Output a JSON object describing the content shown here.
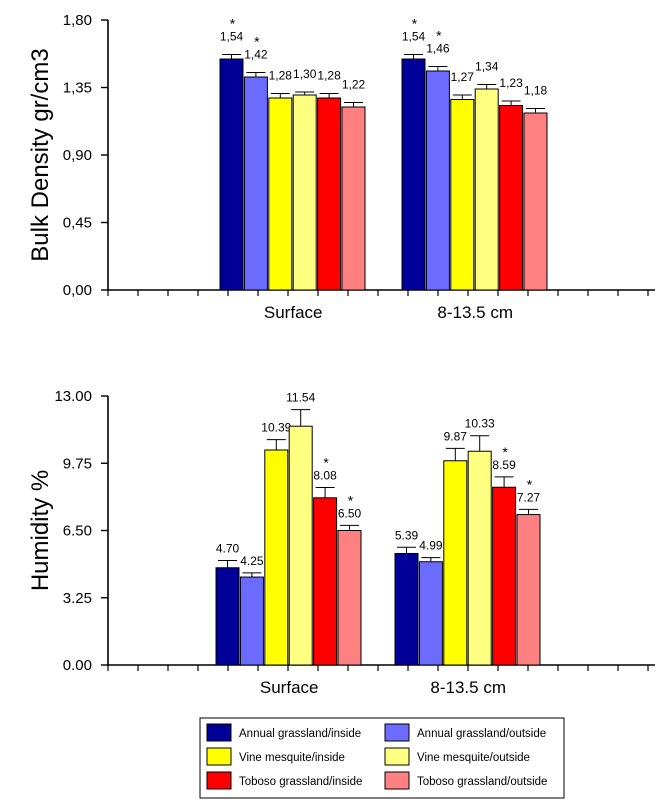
{
  "chart_data": [
    {
      "type": "bar",
      "ylabel": "Bulk Density gr/cm3",
      "yticks": [
        "0,00",
        "0,45",
        "0,90",
        "1,35",
        "1,80"
      ],
      "ylim": [
        0,
        1.8
      ],
      "categories": [
        "Surface",
        "8-13.5 cm"
      ],
      "series": [
        {
          "name": "Annual grassland/inside",
          "color": "#000099",
          "values": [
            1.54,
            1.54
          ],
          "errors": [
            0.03,
            0.03
          ],
          "labels": [
            "1,54",
            "1,54"
          ],
          "significant": [
            true,
            true
          ]
        },
        {
          "name": "Annual grassland/outside",
          "color": "#6b6bff",
          "values": [
            1.42,
            1.46
          ],
          "errors": [
            0.03,
            0.03
          ],
          "labels": [
            "1,42",
            "1,46"
          ],
          "significant": [
            true,
            true
          ]
        },
        {
          "name": "Vine mesquite/inside",
          "color": "#ffff00",
          "values": [
            1.28,
            1.27
          ],
          "errors": [
            0.03,
            0.03
          ],
          "labels": [
            "1,28",
            "1,27"
          ],
          "significant": [
            false,
            false
          ]
        },
        {
          "name": "Vine mesquite/outside",
          "color": "#ffff80",
          "values": [
            1.3,
            1.34
          ],
          "errors": [
            0.02,
            0.03
          ],
          "labels": [
            "1,30",
            "1,34"
          ],
          "significant": [
            false,
            false
          ]
        },
        {
          "name": "Toboso grassland/inside",
          "color": "#ff0000",
          "values": [
            1.28,
            1.23
          ],
          "errors": [
            0.03,
            0.03
          ],
          "labels": [
            "1,28",
            "1,23"
          ],
          "significant": [
            false,
            false
          ]
        },
        {
          "name": "Toboso grassland/outside",
          "color": "#ff8080",
          "values": [
            1.22,
            1.18
          ],
          "errors": [
            0.03,
            0.03
          ],
          "labels": [
            "1,22",
            "1,18"
          ],
          "significant": [
            false,
            false
          ]
        }
      ]
    },
    {
      "type": "bar",
      "ylabel": "Humidity %",
      "yticks": [
        "0.00",
        "3.25",
        "6.50",
        "9.75",
        "13.00"
      ],
      "ylim": [
        0,
        13
      ],
      "categories": [
        "Surface",
        "8-13.5 cm"
      ],
      "series": [
        {
          "name": "Annual grassland/inside",
          "color": "#000099",
          "values": [
            4.7,
            5.39
          ],
          "errors": [
            0.35,
            0.3
          ],
          "labels": [
            "4.70",
            "5.39"
          ],
          "significant": [
            false,
            false
          ]
        },
        {
          "name": "Annual grassland/outside",
          "color": "#6b6bff",
          "values": [
            4.25,
            4.99
          ],
          "errors": [
            0.2,
            0.2
          ],
          "labels": [
            "4.25",
            "4.99"
          ],
          "significant": [
            false,
            false
          ]
        },
        {
          "name": "Vine mesquite/inside",
          "color": "#ffff00",
          "values": [
            10.39,
            9.87
          ],
          "errors": [
            0.5,
            0.6
          ],
          "labels": [
            "10.39",
            "9.87"
          ],
          "significant": [
            false,
            false
          ]
        },
        {
          "name": "Vine mesquite/outside",
          "color": "#ffff80",
          "values": [
            11.54,
            10.33
          ],
          "errors": [
            0.8,
            0.75
          ],
          "labels": [
            "11.54",
            "10.33"
          ],
          "significant": [
            false,
            false
          ]
        },
        {
          "name": "Toboso grassland/inside",
          "color": "#ff0000",
          "values": [
            8.08,
            8.59
          ],
          "errors": [
            0.5,
            0.5
          ],
          "labels": [
            "8.08",
            "8.59"
          ],
          "significant": [
            true,
            true
          ]
        },
        {
          "name": "Toboso grassland/outside",
          "color": "#ff8080",
          "values": [
            6.5,
            7.27
          ],
          "errors": [
            0.25,
            0.25
          ],
          "labels": [
            "6.50",
            "7.27"
          ],
          "significant": [
            true,
            true
          ]
        }
      ]
    }
  ],
  "legend": {
    "items": [
      {
        "label": "Annual grassland/inside",
        "color": "#000099"
      },
      {
        "label": "Annual grassland/outside",
        "color": "#6b6bff"
      },
      {
        "label": "Vine mesquite/inside",
        "color": "#ffff00"
      },
      {
        "label": "Vine mesquite/outside",
        "color": "#ffff80"
      },
      {
        "label": "Toboso grassland/inside",
        "color": "#ff0000"
      },
      {
        "label": "Toboso grassland/outside",
        "color": "#ff8080"
      }
    ]
  },
  "significance_marker": "*"
}
